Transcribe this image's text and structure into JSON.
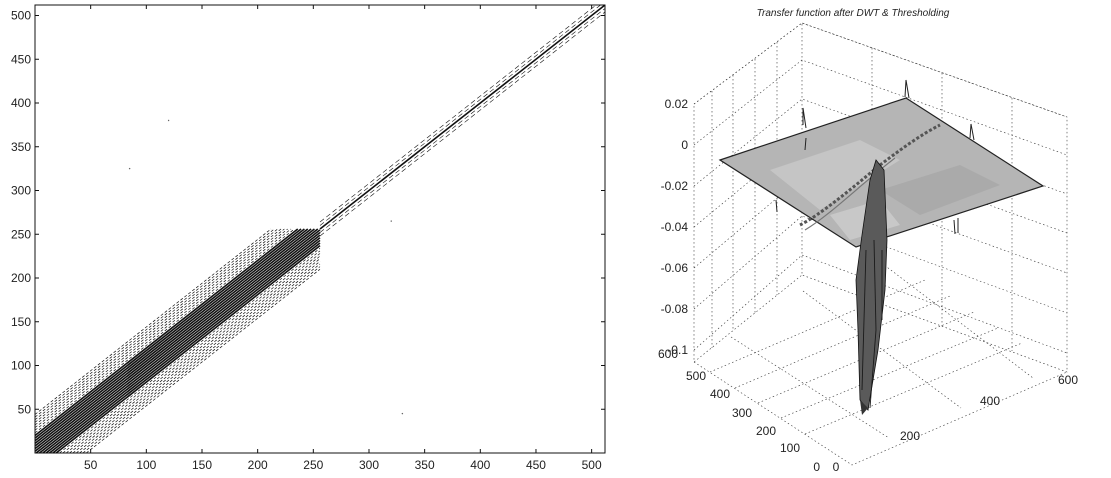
{
  "chart_data": [
    {
      "type": "heatmap",
      "xlim": [
        0,
        512
      ],
      "ylim": [
        0,
        512
      ],
      "x_ticks": [
        50,
        100,
        150,
        200,
        250,
        300,
        350,
        400,
        450,
        500
      ],
      "y_ticks": [
        50,
        100,
        150,
        200,
        250,
        300,
        350,
        400,
        450,
        500
      ],
      "colors": {
        "ink": "#111111",
        "grid": "#333333"
      }
    },
    {
      "type": "surface",
      "title": "Transfer function after DWT & Thresholding",
      "z_ticks": [
        "0.02",
        "0",
        "-0.02",
        "-0.04",
        "-0.06",
        "-0.08",
        "-0.1"
      ],
      "y_ticks": [
        "600",
        "500",
        "400",
        "300",
        "200",
        "100",
        "0"
      ],
      "x_ticks": [
        "0",
        "200",
        "400",
        "600"
      ],
      "zlim": [
        -0.1,
        0.02
      ],
      "xlim": [
        0,
        600
      ],
      "ylim": [
        0,
        600
      ],
      "grid": true,
      "colors": {
        "surface": "#b8b8b8",
        "edge": "#222222"
      }
    }
  ]
}
